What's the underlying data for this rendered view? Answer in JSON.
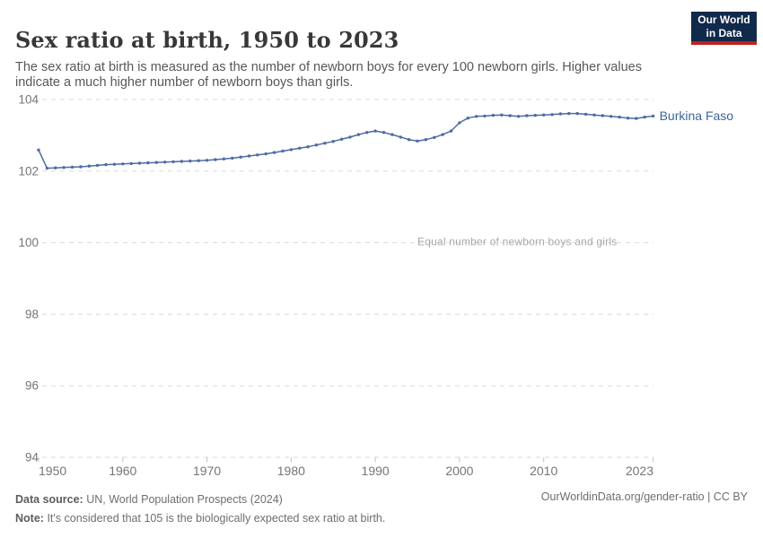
{
  "header": {
    "title": "Sex ratio at birth, 1950 to 2023",
    "subtitle": "The sex ratio at birth is measured as the number of newborn boys for every 100 newborn girls. Higher values indicate a much higher number of newborn boys than girls.",
    "logo": {
      "line1": "Our World",
      "line2": "in Data"
    }
  },
  "chart_data": {
    "type": "line",
    "title": "Sex ratio at birth, 1950 to 2023",
    "xlabel": "",
    "ylabel": "",
    "xlim": [
      1950,
      2023
    ],
    "ylim": [
      94,
      104.6
    ],
    "xticks": [
      1950,
      1960,
      1970,
      1980,
      1990,
      2000,
      2010,
      2023
    ],
    "yticks": [
      94,
      96,
      98,
      100,
      102,
      104
    ],
    "grid": "horizontal-dashed",
    "legend_position": "end-of-line-label",
    "x": [
      1950,
      1951,
      1952,
      1953,
      1954,
      1955,
      1956,
      1957,
      1958,
      1959,
      1960,
      1961,
      1962,
      1963,
      1964,
      1965,
      1966,
      1967,
      1968,
      1969,
      1970,
      1971,
      1972,
      1973,
      1974,
      1975,
      1976,
      1977,
      1978,
      1979,
      1980,
      1981,
      1982,
      1983,
      1984,
      1985,
      1986,
      1987,
      1988,
      1989,
      1990,
      1991,
      1992,
      1993,
      1994,
      1995,
      1996,
      1997,
      1998,
      1999,
      2000,
      2001,
      2002,
      2003,
      2004,
      2005,
      2006,
      2007,
      2008,
      2009,
      2010,
      2011,
      2012,
      2013,
      2014,
      2015,
      2016,
      2017,
      2018,
      2019,
      2020,
      2021,
      2022,
      2023
    ],
    "series": [
      {
        "name": "Burkina Faso",
        "values": [
          102.59,
          102.08,
          102.09,
          102.1,
          102.11,
          102.12,
          102.14,
          102.16,
          102.18,
          102.19,
          102.2,
          102.21,
          102.22,
          102.23,
          102.24,
          102.25,
          102.26,
          102.27,
          102.28,
          102.29,
          102.3,
          102.32,
          102.34,
          102.36,
          102.39,
          102.42,
          102.45,
          102.48,
          102.52,
          102.56,
          102.6,
          102.64,
          102.68,
          102.73,
          102.78,
          102.83,
          102.89,
          102.95,
          103.02,
          103.08,
          103.12,
          103.08,
          103.02,
          102.95,
          102.88,
          102.84,
          102.88,
          102.94,
          103.02,
          103.12,
          103.35,
          103.48,
          103.53,
          103.54,
          103.56,
          103.57,
          103.55,
          103.53,
          103.55,
          103.56,
          103.57,
          103.58,
          103.6,
          103.61,
          103.61,
          103.59,
          103.57,
          103.55,
          103.53,
          103.51,
          103.48,
          103.47,
          103.51,
          103.54
        ]
      }
    ],
    "annotation": {
      "text": "Equal number of newborn boys and girls",
      "value": 100
    }
  },
  "footer": {
    "data_source_label": "Data source:",
    "data_source": "UN, World Population Prospects (2024)",
    "note_label": "Note:",
    "note": "It's considered that 105 is the biologically expected sex ratio at birth.",
    "link": "OurWorldinData.org/gender-ratio | CC BY"
  },
  "colors": {
    "line": "#4e6ba3",
    "entity_label": "#3d649f",
    "grid": "#dadada",
    "tick": "#c4c4c4",
    "axis_text": "#757575",
    "annotation_text": "#a8a8a8",
    "logo_bg": "#11294b",
    "logo_stripe": "#c0201e"
  }
}
